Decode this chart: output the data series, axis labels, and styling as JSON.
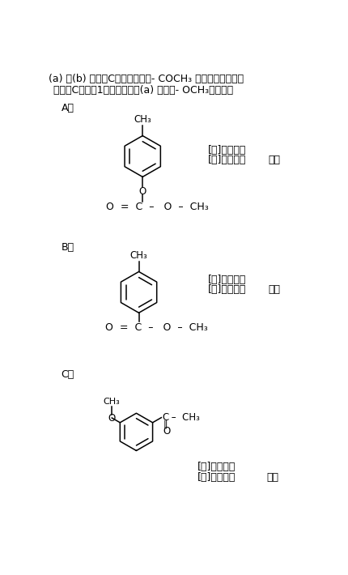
{
  "bg_color": "#ffffff",
  "text_color": "#000000",
  "dpi": 100,
  "figw": 4.3,
  "figh": 7.1,
  "line1": "(a) と(b) から　Cは（く）の　- COCH₃ を持つとわかる。",
  "line2": "また、Cのもう1つの置換基は(a) より　- OCH₃となる。",
  "label_A": "Aは",
  "label_B": "Bは",
  "label_C": "Cは",
  "ans_A1": "[ア]・・・あ",
  "ans_A2": "[イ]・・・す",
  "ans_B1": "[ウ]・・・あ",
  "ans_B2": "[エ]・・・こ",
  "ans_C1": "[オ]・・・お",
  "ans_C2": "[カ]・・・く",
  "kotae": "答え"
}
